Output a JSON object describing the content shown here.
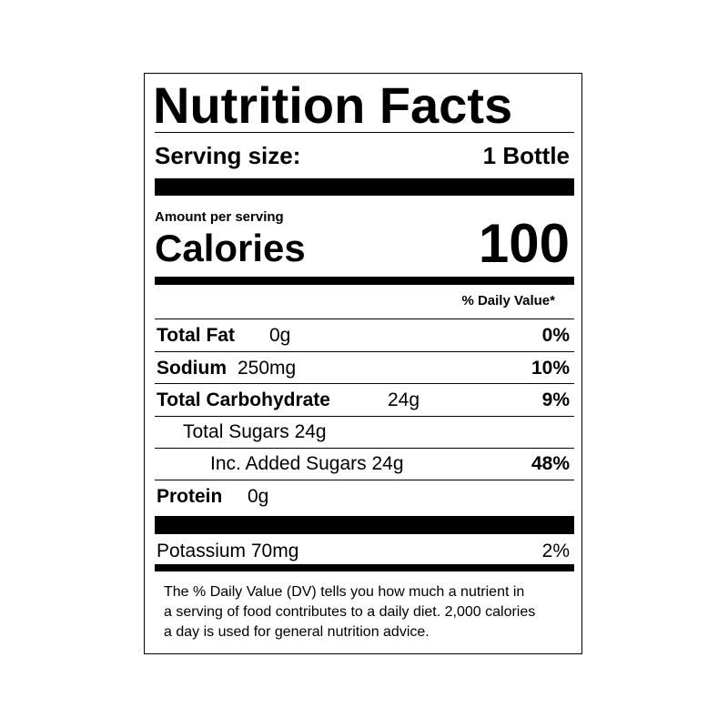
{
  "title": "Nutrition Facts",
  "serving": {
    "label": "Serving size:",
    "value": "1 Bottle"
  },
  "calories": {
    "caption": "Amount per serving",
    "label": "Calories",
    "value": "100"
  },
  "dv_header": "% Daily Value*",
  "rows": [
    {
      "label": "Total Fat",
      "amount": "0g",
      "dv": "0%"
    },
    {
      "label": "Sodium",
      "amount": "250mg",
      "dv": "10%"
    },
    {
      "label": "Total Carbohydrate",
      "amount": "24g",
      "dv": "9%"
    },
    {
      "label": "Total Sugars 24g"
    },
    {
      "label": "Inc. Added Sugars 24g",
      "dv": "48%"
    },
    {
      "label": "Protein",
      "amount": "0g"
    }
  ],
  "potassium": {
    "label": "Potassium 70mg",
    "dv": "2%"
  },
  "footnote": [
    "The % Daily Value (DV) tells you how much a nutrient in",
    "a serving of food contributes to a daily diet. 2,000 calories",
    "a day is used for general nutrition advice."
  ]
}
